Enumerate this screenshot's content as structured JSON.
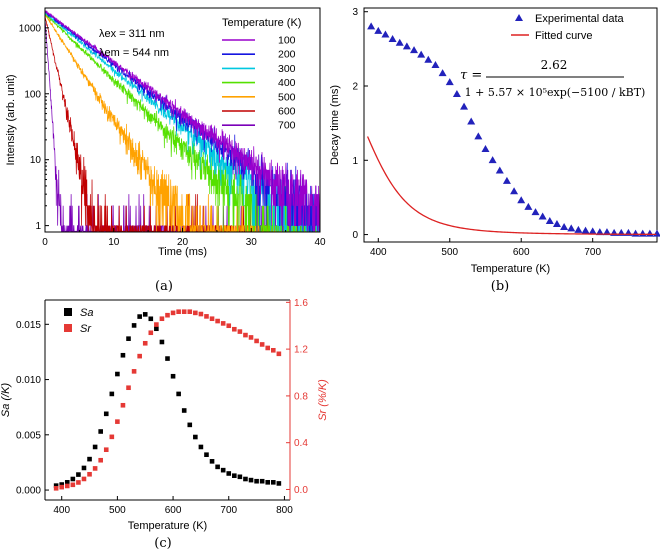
{
  "panel_labels": {
    "a": "(a)",
    "b": "(b)",
    "c": "(c)"
  },
  "chart_data": [
    {
      "id": "a",
      "type": "line",
      "yscale": "log",
      "xlabel": "Time (ms)",
      "ylabel": "Intensity (arb. unit)",
      "xlim": [
        0,
        40
      ],
      "ylim": [
        0.8,
        2000
      ],
      "xticks": [
        0,
        10,
        20,
        30,
        40
      ],
      "yticks": [
        1,
        10,
        100,
        1000
      ],
      "annotations": {
        "ex": "λex = 311 nm",
        "em": "λem = 544 nm"
      },
      "legend_title": "Temperature (K)",
      "series": [
        {
          "name": "100",
          "color": "#9900cc",
          "i0": 1800,
          "tau": 5.6
        },
        {
          "name": "200",
          "color": "#1515e0",
          "i0": 1750,
          "tau": 5.4
        },
        {
          "name": "300",
          "color": "#00c8e0",
          "i0": 1700,
          "tau": 5.0
        },
        {
          "name": "400",
          "color": "#55e000",
          "i0": 1650,
          "tau": 4.3
        },
        {
          "name": "500",
          "color": "#ffa200",
          "i0": 1600,
          "tau": 2.7
        },
        {
          "name": "600",
          "color": "#c00000",
          "i0": 1500,
          "tau": 0.95
        },
        {
          "name": "700",
          "color": "#7a00b8",
          "i0": 1400,
          "tau": 0.3
        }
      ]
    },
    {
      "id": "b",
      "type": "scatter",
      "xlabel": "Temperature (K)",
      "ylabel": "Decay time (ms)",
      "xlim": [
        380,
        790
      ],
      "ylim": [
        -0.1,
        3.05
      ],
      "xticks": [
        400,
        500,
        600,
        700
      ],
      "yticks": [
        0,
        1,
        2,
        3
      ],
      "legend": [
        "Experimental data",
        "Fitted curve"
      ],
      "formula": {
        "lhs": "τ =",
        "numerator": "2.62",
        "denominator": "1 + 5.57 × 10⁵exp(−5100 / kBT)"
      },
      "fit": {
        "tau0": 2.62,
        "A": 557000,
        "Ea": 5100
      },
      "series": [
        {
          "name": "Experimental data",
          "color": "#2222bb",
          "x": [
            390,
            400,
            410,
            420,
            430,
            440,
            450,
            460,
            470,
            480,
            490,
            500,
            510,
            520,
            530,
            540,
            550,
            560,
            570,
            580,
            590,
            600,
            610,
            620,
            630,
            640,
            650,
            660,
            670,
            680,
            690,
            700,
            710,
            720,
            730,
            740,
            750,
            760,
            770,
            780,
            790
          ],
          "y": [
            2.8,
            2.74,
            2.69,
            2.63,
            2.58,
            2.53,
            2.48,
            2.42,
            2.35,
            2.28,
            2.17,
            2.05,
            1.89,
            1.72,
            1.52,
            1.32,
            1.15,
            1.0,
            0.86,
            0.72,
            0.58,
            0.46,
            0.37,
            0.3,
            0.24,
            0.18,
            0.14,
            0.1,
            0.08,
            0.06,
            0.05,
            0.04,
            0.03,
            0.03,
            0.02,
            0.02,
            0.02,
            0.01,
            0.01,
            0.01,
            0.01
          ]
        },
        {
          "name": "Fitted curve",
          "color": "#dd2222"
        }
      ]
    },
    {
      "id": "c",
      "type": "scatter",
      "xlabel": "Temperature (K)",
      "ylabel_left": "Sa (/K)",
      "ylabel_right": "Sr (%/K)",
      "xlim": [
        370,
        810
      ],
      "ylim_left": [
        -0.0009,
        0.0172
      ],
      "ylim_right": [
        -0.09,
        1.62
      ],
      "xticks": [
        400,
        500,
        600,
        700,
        800
      ],
      "yticks_left": [
        "0.000",
        "0.005",
        "0.010",
        "0.015"
      ],
      "yticks_right": [
        "0.0",
        "0.4",
        "0.8",
        "1.2",
        "1.6"
      ],
      "legend": [
        "Sa",
        "Sr"
      ],
      "series": [
        {
          "name": "Sa",
          "axis": "left",
          "color": "#000000",
          "x": [
            390,
            400,
            410,
            420,
            430,
            440,
            450,
            460,
            470,
            480,
            490,
            500,
            510,
            520,
            530,
            540,
            550,
            560,
            570,
            580,
            590,
            600,
            610,
            620,
            630,
            640,
            650,
            660,
            670,
            680,
            690,
            700,
            710,
            720,
            730,
            740,
            750,
            760,
            770,
            780,
            790
          ],
          "y": [
            0.0004,
            0.0005,
            0.0007,
            0.001,
            0.0014,
            0.002,
            0.0028,
            0.0039,
            0.0053,
            0.0069,
            0.0087,
            0.0105,
            0.0122,
            0.0137,
            0.0149,
            0.0157,
            0.0159,
            0.0155,
            0.0146,
            0.0134,
            0.0119,
            0.0103,
            0.0087,
            0.0072,
            0.0059,
            0.0048,
            0.0039,
            0.0032,
            0.0026,
            0.0021,
            0.0018,
            0.0015,
            0.0013,
            0.0012,
            0.001,
            0.0009,
            0.0008,
            0.0008,
            0.0007,
            0.0007,
            0.0006
          ]
        },
        {
          "name": "Sr",
          "axis": "right",
          "color": "#e53935",
          "x": [
            390,
            400,
            410,
            420,
            430,
            440,
            450,
            460,
            470,
            480,
            490,
            500,
            510,
            520,
            530,
            540,
            550,
            560,
            570,
            580,
            590,
            600,
            610,
            620,
            630,
            640,
            650,
            660,
            670,
            680,
            690,
            700,
            710,
            720,
            730,
            740,
            750,
            760,
            770,
            780,
            790
          ],
          "y": [
            0.01,
            0.02,
            0.03,
            0.04,
            0.06,
            0.09,
            0.13,
            0.18,
            0.25,
            0.34,
            0.45,
            0.58,
            0.72,
            0.87,
            1.01,
            1.14,
            1.25,
            1.34,
            1.41,
            1.46,
            1.49,
            1.51,
            1.52,
            1.52,
            1.52,
            1.51,
            1.5,
            1.48,
            1.46,
            1.44,
            1.42,
            1.4,
            1.37,
            1.35,
            1.32,
            1.3,
            1.27,
            1.24,
            1.21,
            1.19,
            1.16
          ]
        }
      ]
    }
  ]
}
